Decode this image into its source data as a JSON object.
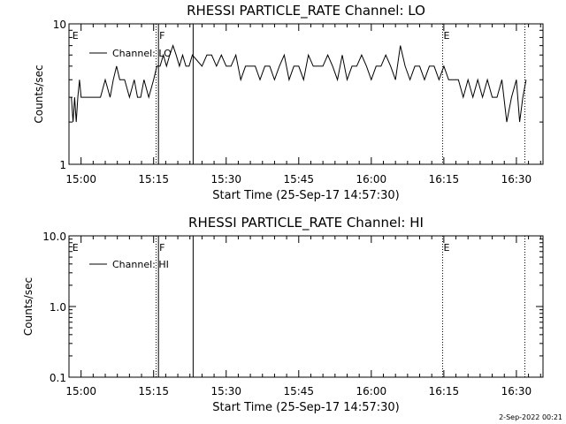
{
  "footer_stamp": "2-Sep-2022 00:21",
  "chart_data": [
    {
      "type": "line",
      "title": "RHESSI PARTICLE_RATE Channel: LO",
      "xlabel": "Start Time (25-Sep-17 14:57:30)",
      "ylabel": "Counts/sec",
      "yscale": "log",
      "ylim": [
        1,
        10
      ],
      "xlim": [
        "14:57:30",
        "16:35:30"
      ],
      "x_ticks": [
        "15:00",
        "15:15",
        "15:30",
        "15:45",
        "16:00",
        "16:15",
        "16:30"
      ],
      "y_ticks": [
        "1",
        "10"
      ],
      "legend": {
        "entries": [
          "Channel: LO"
        ],
        "placement": "top-left"
      },
      "flag_markers": [
        {
          "time": "14:58:00",
          "label": "E",
          "style": "none"
        },
        {
          "time": "15:15:30",
          "label": "",
          "style": "dotted"
        },
        {
          "time": "15:16:00",
          "label": "F",
          "style": "solid"
        },
        {
          "time": "15:23:10",
          "label": "",
          "style": "solid"
        },
        {
          "time": "16:14:45",
          "label": "E",
          "style": "dotted"
        },
        {
          "time": "16:31:45",
          "label": "",
          "style": "dotted"
        }
      ],
      "series": [
        {
          "name": "Channel: LO",
          "x": [
            "14:58:00",
            "14:58:20",
            "14:58:40",
            "14:59:00",
            "14:59:20",
            "14:59:40",
            "15:00:00",
            "15:02:00",
            "15:03:00",
            "15:04:00",
            "15:05:00",
            "15:06:00",
            "15:06:40",
            "15:07:20",
            "15:08:00",
            "15:09:00",
            "15:10:00",
            "15:11:00",
            "15:11:40",
            "15:12:20",
            "15:13:00",
            "15:14:00",
            "15:15:00",
            "15:15:40",
            "15:16:20",
            "15:17:00",
            "15:17:40",
            "15:18:20",
            "15:19:00",
            "15:19:40",
            "15:20:20",
            "15:21:00",
            "15:21:40",
            "15:22:20",
            "15:23:00",
            "15:25:00",
            "15:26:00",
            "15:27:00",
            "15:28:00",
            "15:29:00",
            "15:30:00",
            "15:31:00",
            "15:32:00",
            "15:33:00",
            "15:34:00",
            "15:35:00",
            "15:36:00",
            "15:37:00",
            "15:38:00",
            "15:39:00",
            "15:40:00",
            "15:41:00",
            "15:42:00",
            "15:43:00",
            "15:44:00",
            "15:45:00",
            "15:46:00",
            "15:47:00",
            "15:48:00",
            "15:49:00",
            "15:50:00",
            "15:51:00",
            "15:52:00",
            "15:53:00",
            "15:54:00",
            "15:55:00",
            "15:56:00",
            "15:57:00",
            "15:58:00",
            "15:59:00",
            "16:00:00",
            "16:01:00",
            "16:02:00",
            "16:03:00",
            "16:04:00",
            "16:05:00",
            "16:06:00",
            "16:07:00",
            "16:08:00",
            "16:09:00",
            "16:10:00",
            "16:11:00",
            "16:12:00",
            "16:13:00",
            "16:14:00",
            "16:15:00",
            "16:16:00",
            "16:17:00",
            "16:18:00",
            "16:19:00",
            "16:20:00",
            "16:21:00",
            "16:22:00",
            "16:23:00",
            "16:24:00",
            "16:25:00",
            "16:26:00",
            "16:27:00",
            "16:28:00",
            "16:29:00",
            "16:30:00",
            "16:30:40",
            "16:31:20",
            "16:32:00"
          ],
          "values": [
            3,
            2,
            3,
            2,
            3,
            4,
            3,
            3,
            3,
            3,
            4,
            3,
            4,
            5,
            4,
            4,
            3,
            4,
            3,
            3,
            4,
            3,
            4,
            5,
            5,
            6,
            5,
            6,
            7,
            6,
            5,
            6,
            5,
            5,
            6,
            5,
            6,
            6,
            5,
            6,
            5,
            5,
            6,
            4,
            5,
            5,
            5,
            4,
            5,
            5,
            4,
            5,
            6,
            4,
            5,
            5,
            4,
            6,
            5,
            5,
            5,
            6,
            5,
            4,
            6,
            4,
            5,
            5,
            6,
            5,
            4,
            5,
            5,
            6,
            5,
            4,
            7,
            5,
            4,
            5,
            5,
            4,
            5,
            5,
            4,
            5,
            4,
            4,
            4,
            3,
            4,
            3,
            4,
            3,
            4,
            3,
            3,
            4,
            2,
            3,
            4,
            2,
            3,
            4
          ]
        }
      ]
    },
    {
      "type": "line",
      "title": "RHESSI PARTICLE_RATE Channel: HI",
      "xlabel": "Start Time (25-Sep-17 14:57:30)",
      "ylabel": "Counts/sec",
      "yscale": "log",
      "ylim": [
        0.1,
        10
      ],
      "xlim": [
        "14:57:30",
        "16:35:30"
      ],
      "x_ticks": [
        "15:00",
        "15:15",
        "15:30",
        "15:45",
        "16:00",
        "16:15",
        "16:30"
      ],
      "y_ticks": [
        "10.0",
        "1.0",
        "0.1"
      ],
      "legend": {
        "entries": [
          "Channel: HI"
        ],
        "placement": "top-left"
      },
      "flag_markers": [
        {
          "time": "14:58:00",
          "label": "E",
          "style": "none"
        },
        {
          "time": "15:15:30",
          "label": "",
          "style": "dotted"
        },
        {
          "time": "15:16:00",
          "label": "F",
          "style": "solid"
        },
        {
          "time": "15:23:10",
          "label": "",
          "style": "solid"
        },
        {
          "time": "16:14:45",
          "label": "E",
          "style": "dotted"
        },
        {
          "time": "16:31:45",
          "label": "",
          "style": "dotted"
        }
      ],
      "series": [
        {
          "name": "Channel: HI",
          "x": [],
          "values": []
        }
      ]
    }
  ]
}
